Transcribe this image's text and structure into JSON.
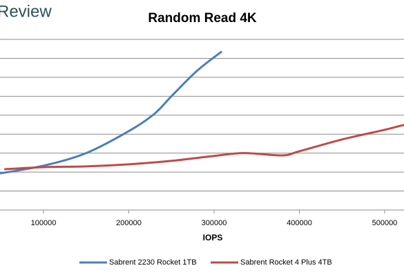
{
  "watermark": "Review",
  "chart_data": {
    "type": "line",
    "title": "Random Read 4K",
    "xlabel": "IOPS",
    "xlim": [
      49000,
      522700
    ],
    "xticks": [
      100000,
      200000,
      300000,
      400000,
      500000
    ],
    "ylim": [
      0,
      9
    ],
    "yticks": [
      0,
      1,
      2,
      3,
      4,
      5,
      6,
      7,
      8,
      9
    ],
    "ytick_labels": false,
    "grid": true,
    "legend": "bottom",
    "series": [
      {
        "name": "Sabrent 2230 Rocket 1TB",
        "color": "#4a7ebb",
        "x": [
          49000,
          100000,
          150000,
          200000,
          230000,
          250000,
          280000,
          309000
        ],
        "values": [
          1.93,
          2.34,
          3.0,
          4.16,
          5.07,
          6.0,
          7.34,
          8.36
        ]
      },
      {
        "name": "Sabrent Rocket 4 Plus 4TB",
        "color": "#be4b48",
        "x": [
          54000,
          100000,
          150000,
          200000,
          250000,
          300000,
          335000,
          380000,
          400000,
          450000,
          500000,
          522700
        ],
        "values": [
          2.15,
          2.26,
          2.3,
          2.41,
          2.59,
          2.85,
          3.0,
          2.88,
          3.1,
          3.72,
          4.23,
          4.49
        ]
      }
    ]
  }
}
